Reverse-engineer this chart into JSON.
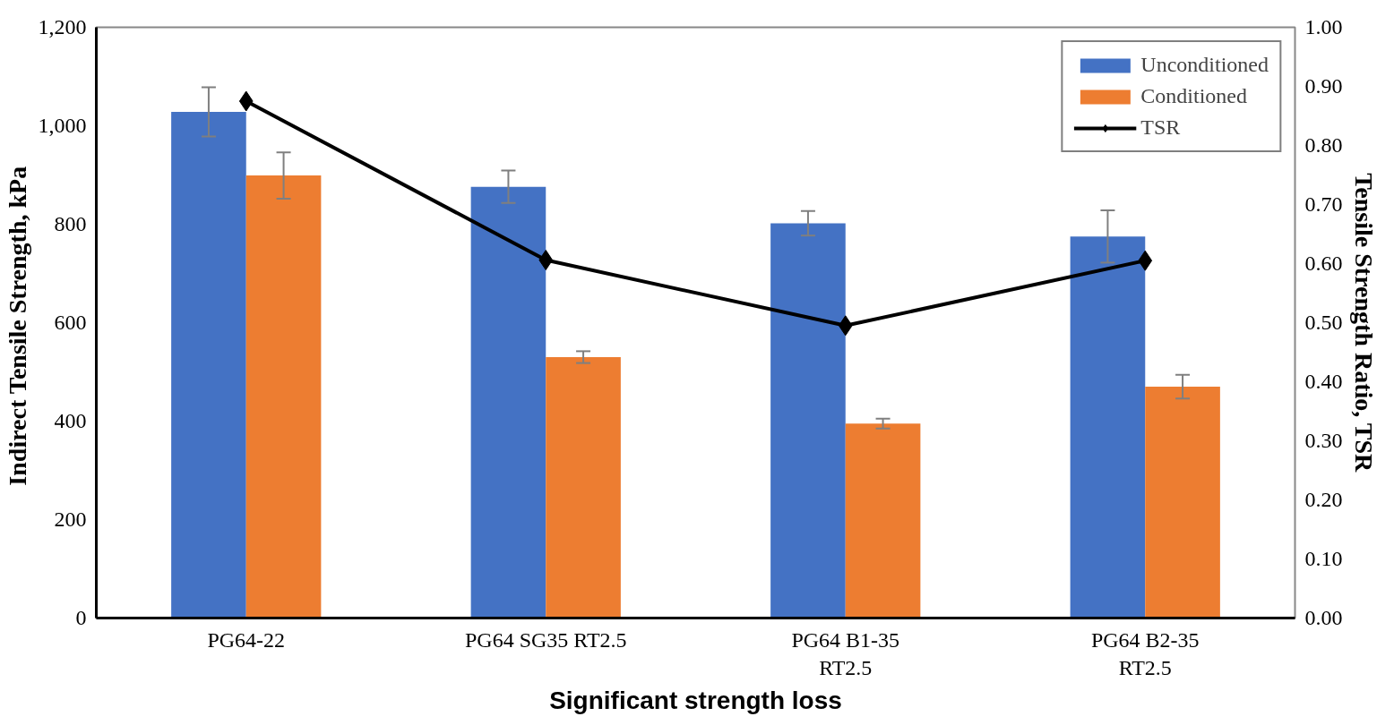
{
  "chart_data": {
    "type": "bar",
    "xlabel": "Significant strength loss",
    "ylabel": "Indirect  Tensile Strength, kPa",
    "y2label": "Tensile Strength Ratio, TSR",
    "categories": [
      "PG64-22",
      "PG64 SG35 RT2.5",
      "PG64 B1-35\nRT2.5",
      "PG64 B2-35\nRT2.5"
    ],
    "series": [
      {
        "name": "Unconditioned",
        "color": "#4472c4",
        "values": [
          1028,
          876,
          802,
          775
        ],
        "errors": [
          50,
          33,
          25,
          53
        ]
      },
      {
        "name": "Conditioned",
        "color": "#ed7d31",
        "values": [
          899,
          530,
          395,
          470
        ],
        "errors": [
          47,
          12,
          10,
          24
        ]
      },
      {
        "name": "TSR",
        "type": "line",
        "axis": "y2",
        "color": "#000000",
        "marker": "diamond",
        "values": [
          0.875,
          0.606,
          0.495,
          0.605
        ]
      }
    ],
    "ylim": [
      0,
      1200
    ],
    "yticks": [
      0,
      200,
      400,
      600,
      800,
      {
        "value": 1000,
        "label": "1,000"
      },
      {
        "value": 1200,
        "label": "1,200"
      }
    ],
    "y2lim": [
      0,
      1.0
    ],
    "y2ticks": [
      {
        "value": 0,
        "label": "0.00"
      },
      {
        "value": 0.1,
        "label": "0.10"
      },
      {
        "value": 0.2,
        "label": "0.20"
      },
      {
        "value": 0.3,
        "label": "0.30"
      },
      {
        "value": 0.4,
        "label": "0.40"
      },
      {
        "value": 0.5,
        "label": "0.50"
      },
      {
        "value": 0.6,
        "label": "0.60"
      },
      {
        "value": 0.7,
        "label": "0.70"
      },
      {
        "value": 0.8,
        "label": "0.80"
      },
      {
        "value": 0.9,
        "label": "0.90"
      },
      {
        "value": 1.0,
        "label": "1.00"
      }
    ],
    "grid": false,
    "legend": "top right"
  }
}
